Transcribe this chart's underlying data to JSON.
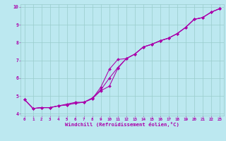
{
  "xlabel": "Windchill (Refroidissement éolien,°C)",
  "xlim": [
    -0.5,
    23.5
  ],
  "ylim": [
    3.9,
    10.15
  ],
  "xticks": [
    0,
    1,
    2,
    3,
    4,
    5,
    6,
    7,
    8,
    9,
    10,
    11,
    12,
    13,
    14,
    15,
    16,
    17,
    18,
    19,
    20,
    21,
    22,
    23
  ],
  "yticks": [
    4,
    5,
    6,
    7,
    8,
    9,
    10
  ],
  "bg_color": "#bce8f0",
  "grid_color": "#99cccc",
  "line_color": "#aa00aa",
  "series": [
    [
      4.8,
      4.3,
      4.35,
      4.35,
      4.45,
      4.55,
      4.65,
      4.65,
      4.9,
      5.35,
      6.0,
      6.6,
      7.1,
      7.35,
      7.75,
      7.9,
      8.1,
      8.25,
      8.5,
      8.85,
      9.3,
      9.4,
      9.7,
      9.9
    ],
    [
      4.8,
      4.3,
      4.35,
      4.35,
      4.45,
      4.5,
      4.6,
      4.65,
      4.85,
      5.5,
      6.5,
      7.05,
      7.1,
      7.35,
      7.75,
      7.9,
      8.1,
      8.25,
      8.5,
      8.85,
      9.3,
      9.4,
      9.7,
      9.9
    ],
    [
      4.8,
      4.3,
      4.35,
      4.35,
      4.45,
      4.5,
      4.6,
      4.65,
      4.85,
      5.3,
      5.55,
      6.55,
      7.1,
      7.35,
      7.75,
      7.9,
      8.1,
      8.25,
      8.5,
      8.85,
      9.3,
      9.4,
      9.7,
      9.9
    ]
  ],
  "tick_fontsize": 4.2,
  "xlabel_fontsize": 5.2,
  "marker_size": 2.0,
  "line_width": 0.75
}
